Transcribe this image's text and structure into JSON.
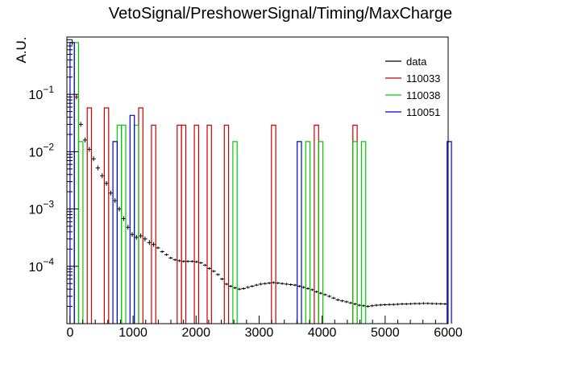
{
  "chart_data": {
    "type": "histogram",
    "title": "VetoSignal/PreshowerSignal/Timing/MaxCharge",
    "xlabel": "",
    "ylabel": "A.U.",
    "xlim": [
      -50,
      6000
    ],
    "ylim": [
      1e-05,
      1
    ],
    "yscale": "log",
    "grid": false,
    "legend_position": "top-right",
    "x_ticks": [
      {
        "value": 0,
        "label": "0"
      },
      {
        "value": 1000,
        "label": "1000"
      },
      {
        "value": 2000,
        "label": "2000"
      },
      {
        "value": 3000,
        "label": "3000"
      },
      {
        "value": 4000,
        "label": "4000"
      },
      {
        "value": 5000,
        "label": "5000"
      },
      {
        "value": 6000,
        "label": "6000"
      }
    ],
    "y_ticks": [
      {
        "value": 0.1,
        "base": "10",
        "exp": "−1"
      },
      {
        "value": 0.01,
        "base": "10",
        "exp": "−2"
      },
      {
        "value": 0.001,
        "base": "10",
        "exp": "−3"
      },
      {
        "value": 0.0001,
        "base": "10",
        "exp": "−4"
      }
    ],
    "series": [
      {
        "name": "data",
        "color": "#000000",
        "style": "errorbar",
        "bin_width": 68,
        "x": [
          0,
          68,
          136,
          204,
          272,
          340,
          408,
          476,
          544,
          612,
          680,
          748,
          816,
          884,
          952,
          1020,
          1088,
          1156,
          1224,
          1292,
          1360,
          1428,
          1496,
          1564,
          1632,
          1700,
          1768,
          1836,
          1904,
          1972,
          2040,
          2108,
          2176,
          2244,
          2312,
          2380,
          2448,
          2516,
          2584,
          2652,
          2720,
          2788,
          2856,
          2924,
          2992,
          3060,
          3128,
          3196,
          3264,
          3332,
          3400,
          3468,
          3536,
          3604,
          3672,
          3740,
          3808,
          3876,
          3944,
          4012,
          4080,
          4148,
          4216,
          4284,
          4352,
          4420,
          4488,
          4556,
          4624,
          4692,
          4760,
          4828,
          4896,
          4964,
          5032,
          5100,
          5168,
          5236,
          5304,
          5372,
          5440,
          5508,
          5576,
          5644,
          5712,
          5780,
          5848,
          5916
        ],
        "y": [
          0.8,
          0.09,
          0.03,
          0.016,
          0.011,
          0.0075,
          0.0052,
          0.0038,
          0.0028,
          0.0019,
          0.0014,
          0.001,
          0.00068,
          0.00048,
          0.00036,
          0.00032,
          0.00034,
          0.0003,
          0.00026,
          0.00024,
          0.00021,
          0.00018,
          0.00016,
          0.00014,
          0.00013,
          0.000125,
          0.000122,
          0.000122,
          0.000122,
          0.00012,
          0.000115,
          0.000105,
          9.2e-05,
          8.2e-05,
          7.2e-05,
          6e-05,
          4.9e-05,
          4.5e-05,
          4.2e-05,
          4e-05,
          4.1e-05,
          4.3e-05,
          4.5e-05,
          4.7e-05,
          4.9e-05,
          5e-05,
          5.1e-05,
          5.2e-05,
          5.1e-05,
          5e-05,
          4.9e-05,
          4.8e-05,
          4.7e-05,
          4.5e-05,
          4.3e-05,
          4.1e-05,
          3.9e-05,
          3.6e-05,
          3.4e-05,
          3.2e-05,
          3e-05,
          2.8e-05,
          2.6e-05,
          2.5e-05,
          2.4e-05,
          2.3e-05,
          2.2e-05,
          2.1e-05,
          2.05e-05,
          2e-05,
          2.05e-05,
          2.1e-05,
          2.12e-05,
          2.14e-05,
          2.15e-05,
          2.16e-05,
          2.18e-05,
          2.2e-05,
          2.2e-05,
          2.22e-05,
          2.24e-05,
          2.24e-05,
          2.25e-05,
          2.25e-05,
          2.24e-05,
          2.23e-05,
          2.22e-05,
          2.21e-05
        ]
      },
      {
        "name": "110033",
        "color": "#cc0000",
        "style": "step",
        "bin_width": 68,
        "bins": [
          {
            "x": 68,
            "y": 0.09
          },
          {
            "x": 272,
            "y": 0.058
          },
          {
            "x": 544,
            "y": 0.058
          },
          {
            "x": 1088,
            "y": 0.058
          },
          {
            "x": 1292,
            "y": 0.029
          },
          {
            "x": 1700,
            "y": 0.029
          },
          {
            "x": 1768,
            "y": 0.029
          },
          {
            "x": 1972,
            "y": 0.029
          },
          {
            "x": 2176,
            "y": 0.029
          },
          {
            "x": 2448,
            "y": 0.029
          },
          {
            "x": 3196,
            "y": 0.029
          },
          {
            "x": 3876,
            "y": 0.029
          },
          {
            "x": 4488,
            "y": 0.029
          }
        ]
      },
      {
        "name": "110038",
        "color": "#00cc00",
        "style": "step",
        "bin_width": 68,
        "bins": [
          {
            "x": 68,
            "y": 0.8
          },
          {
            "x": 136,
            "y": 0.015
          },
          {
            "x": 748,
            "y": 0.029
          },
          {
            "x": 816,
            "y": 0.029
          },
          {
            "x": 1020,
            "y": 0.029
          },
          {
            "x": 2584,
            "y": 0.015
          },
          {
            "x": 3740,
            "y": 0.015
          },
          {
            "x": 3944,
            "y": 0.015
          },
          {
            "x": 4488,
            "y": 0.015
          },
          {
            "x": 4624,
            "y": 0.015
          }
        ]
      },
      {
        "name": "110051",
        "color": "#0000cc",
        "style": "step",
        "bin_width": 68,
        "bins": [
          {
            "x": 0,
            "y": 0.8
          },
          {
            "x": 680,
            "y": 0.015
          },
          {
            "x": 952,
            "y": 0.043
          },
          {
            "x": 3604,
            "y": 0.015
          },
          {
            "x": 5984,
            "y": 0.015
          }
        ]
      }
    ]
  }
}
